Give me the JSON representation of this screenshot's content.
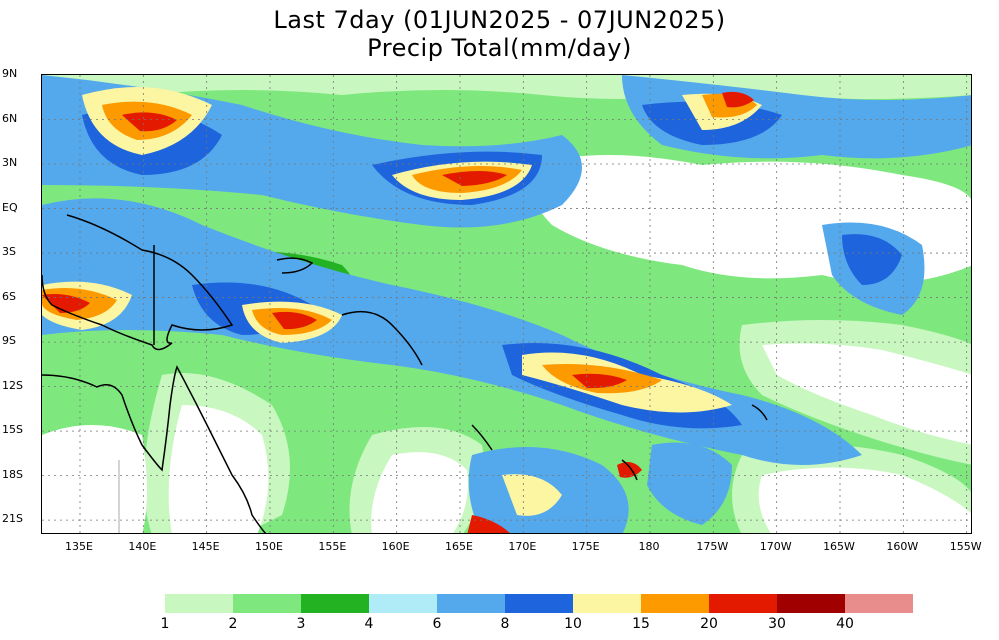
{
  "title": {
    "line1": "Last 7day (01JUN2025 - 07JUN2025)",
    "line2": "Precip Total(mm/day)"
  },
  "map": {
    "lon_range": [
      132,
      155.5
    ],
    "lat_range": [
      -22,
      9
    ],
    "lat_ticks": [
      "9N",
      "6N",
      "3N",
      "EQ",
      "3S",
      "6S",
      "9S",
      "12S",
      "15S",
      "18S",
      "21S"
    ],
    "lon_ticks": [
      "135E",
      "140E",
      "145E",
      "150E",
      "155E",
      "160E",
      "165E",
      "170E",
      "175E",
      "180",
      "175W",
      "170W",
      "165W",
      "160W",
      "155W"
    ]
  },
  "legend": {
    "thresholds": [
      "1",
      "2",
      "3",
      "4",
      "6",
      "8",
      "10",
      "15",
      "20",
      "30",
      "40"
    ],
    "colors": [
      "#c8f7c0",
      "#7ee87e",
      "#22b222",
      "#b0ecf7",
      "#54a8ec",
      "#1e64dc",
      "#fcf5a2",
      "#fc9a00",
      "#e41a00",
      "#a00000",
      "#e88c8c"
    ]
  }
}
